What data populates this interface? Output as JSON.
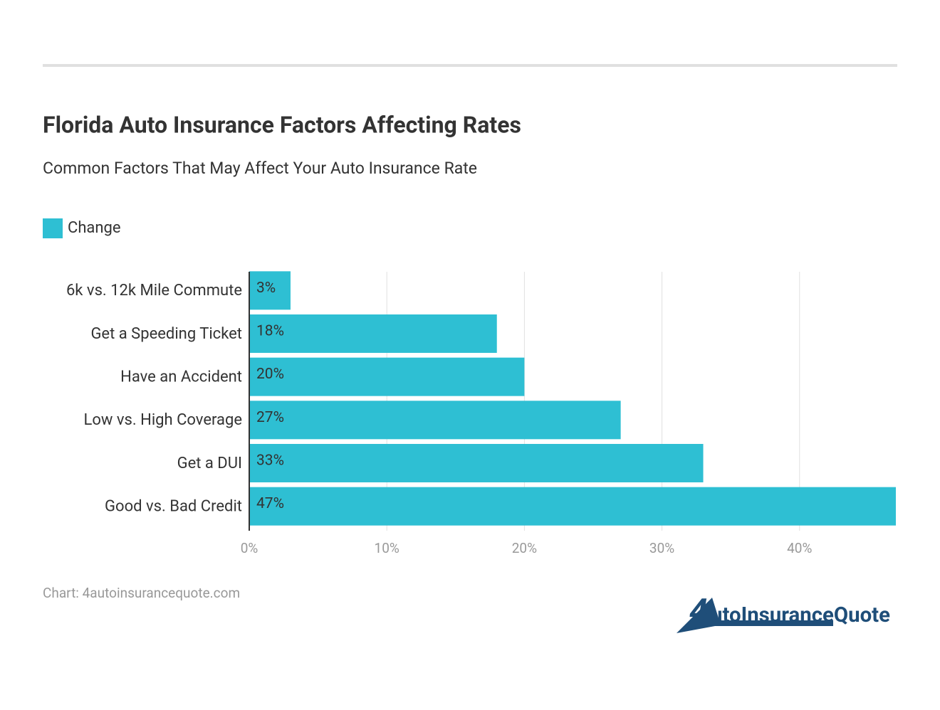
{
  "chart_data": {
    "type": "bar",
    "orientation": "horizontal",
    "title": "Florida Auto Insurance Factors Affecting Rates",
    "subtitle": "Common Factors That May Affect Your Auto Insurance Rate",
    "categories": [
      "6k vs. 12k Mile Commute",
      "Get a Speeding Ticket",
      "Have an Accident",
      "Low vs. High Coverage",
      "Get a DUI",
      "Good vs. Bad Credit"
    ],
    "series": [
      {
        "name": "Change",
        "color": "#2ebfd3",
        "values": [
          3,
          18,
          20,
          27,
          33,
          47
        ],
        "value_labels": [
          "3%",
          "18%",
          "20%",
          "27%",
          "33%",
          "47%"
        ]
      }
    ],
    "xlim": [
      0,
      47
    ],
    "xticks": [
      {
        "value": 0,
        "label": "0%"
      },
      {
        "value": 10,
        "label": "10%"
      },
      {
        "value": 20,
        "label": "20%"
      },
      {
        "value": 30,
        "label": "30%"
      },
      {
        "value": 40,
        "label": "40%"
      }
    ],
    "grid": true,
    "legend": "top-left",
    "source": "Chart: 4autoinsurancequote.com"
  },
  "logo": {
    "mark": "4",
    "text": "utoInsuranceQuote"
  }
}
